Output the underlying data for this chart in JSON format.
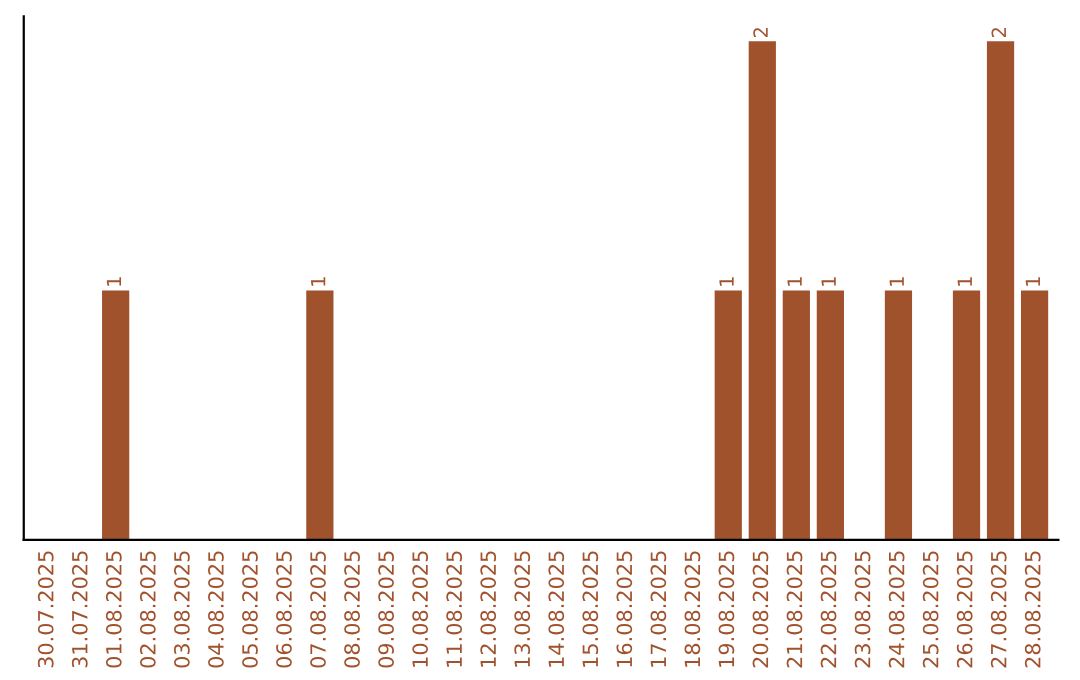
{
  "chart_data": {
    "type": "bar",
    "categories": [
      "30.07.2025",
      "31.07.2025",
      "01.08.2025",
      "02.08.2025",
      "03.08.2025",
      "04.08.2025",
      "05.08.2025",
      "06.08.2025",
      "07.08.2025",
      "08.08.2025",
      "09.08.2025",
      "10.08.2025",
      "11.08.2025",
      "12.08.2025",
      "13.08.2025",
      "14.08.2025",
      "15.08.2025",
      "16.08.2025",
      "17.08.2025",
      "18.08.2025",
      "19.08.2025",
      "20.08.2025",
      "21.08.2025",
      "22.08.2025",
      "23.08.2025",
      "24.08.2025",
      "25.08.2025",
      "26.08.2025",
      "27.08.2025",
      "28.08.2025"
    ],
    "values": [
      0,
      0,
      1,
      0,
      0,
      0,
      0,
      0,
      1,
      0,
      0,
      0,
      0,
      0,
      0,
      0,
      0,
      0,
      0,
      0,
      1,
      2,
      1,
      1,
      0,
      1,
      0,
      1,
      2,
      1
    ],
    "value_labels": [
      null,
      null,
      "1",
      null,
      null,
      null,
      null,
      null,
      "1",
      null,
      null,
      null,
      null,
      null,
      null,
      null,
      null,
      null,
      null,
      null,
      "1",
      "2",
      "1",
      "1",
      null,
      "1",
      null,
      "1",
      "2",
      "1"
    ],
    "color": "#a0522d",
    "grid": false,
    "legend": false
  }
}
